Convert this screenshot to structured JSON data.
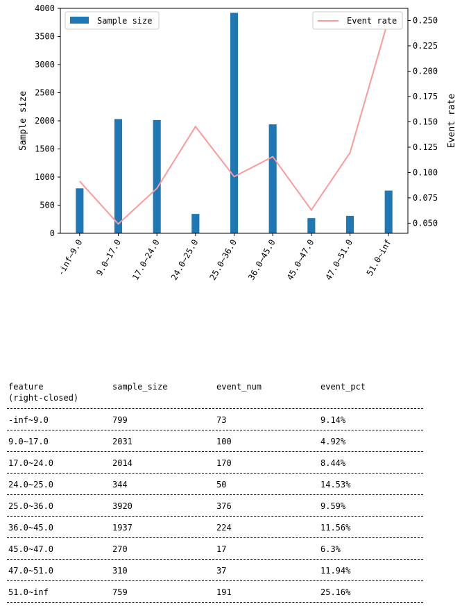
{
  "chart_data": {
    "type": "bar+line",
    "categories": [
      "-inf~9.0",
      "9.0~17.0",
      "17.0~24.0",
      "24.0~25.0",
      "25.0~36.0",
      "36.0~45.0",
      "45.0~47.0",
      "47.0~51.0",
      "51.0~inf"
    ],
    "series": [
      {
        "name": "Sample size",
        "type": "bar",
        "axis": "left",
        "color": "#1f77b4",
        "values": [
          799,
          2031,
          2014,
          344,
          3920,
          1937,
          270,
          310,
          759
        ]
      },
      {
        "name": "Event rate",
        "type": "line",
        "axis": "right",
        "color": "#ff9999",
        "values": [
          0.0914,
          0.0492,
          0.0844,
          0.1453,
          0.0959,
          0.1156,
          0.063,
          0.1194,
          0.2516
        ]
      }
    ],
    "ylabel": "Sample size",
    "y2label": "Event rate",
    "ylim": [
      0,
      4000
    ],
    "yticks": [
      0,
      500,
      1000,
      1500,
      2000,
      2500,
      3000,
      3500,
      4000
    ],
    "y2lim": [
      0.04,
      0.262
    ],
    "y2ticks": [
      "0.050",
      "0.075",
      "0.100",
      "0.125",
      "0.150",
      "0.175",
      "0.200",
      "0.225",
      "0.250"
    ],
    "legend": [
      {
        "label": "Sample size",
        "placement": "top-left"
      },
      {
        "label": "Event rate",
        "placement": "top-right"
      }
    ],
    "grid": false
  },
  "table": {
    "headers": [
      "feature\n(right-closed)",
      "sample_size",
      "event_num",
      "event_pct"
    ],
    "rows": [
      [
        "-inf~9.0",
        "799",
        "73",
        "9.14%"
      ],
      [
        "9.0~17.0",
        "2031",
        "100",
        "4.92%"
      ],
      [
        "17.0~24.0",
        "2014",
        "170",
        "8.44%"
      ],
      [
        "24.0~25.0",
        "344",
        "50",
        "14.53%"
      ],
      [
        "25.0~36.0",
        "3920",
        "376",
        "9.59%"
      ],
      [
        "36.0~45.0",
        "1937",
        "224",
        "11.56%"
      ],
      [
        "45.0~47.0",
        "270",
        "17",
        "6.3%"
      ],
      [
        "47.0~51.0",
        "310",
        "37",
        "11.94%"
      ],
      [
        "51.0~inf",
        "759",
        "191",
        "25.16%"
      ]
    ]
  }
}
